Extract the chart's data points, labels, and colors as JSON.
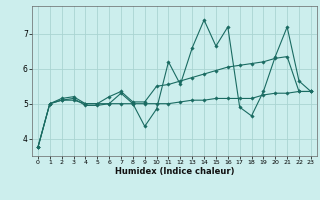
{
  "title": "",
  "xlabel": "Humidex (Indice chaleur)",
  "bg_color": "#cceeed",
  "grid_color": "#aad4d2",
  "line_color": "#1a6b62",
  "xlim": [
    -0.5,
    23.5
  ],
  "ylim": [
    3.5,
    7.8
  ],
  "yticks": [
    4,
    5,
    6,
    7
  ],
  "xticks": [
    0,
    1,
    2,
    3,
    4,
    5,
    6,
    7,
    8,
    9,
    10,
    11,
    12,
    13,
    14,
    15,
    16,
    17,
    18,
    19,
    20,
    21,
    22,
    23
  ],
  "series": [
    [
      3.75,
      5.0,
      5.1,
      5.15,
      4.95,
      4.95,
      5.0,
      5.3,
      5.0,
      4.35,
      4.85,
      6.2,
      5.55,
      6.6,
      7.4,
      6.65,
      7.2,
      4.9,
      4.65,
      5.35,
      6.35,
      7.2,
      5.65,
      5.35
    ],
    [
      3.75,
      5.0,
      5.15,
      5.2,
      5.0,
      5.0,
      5.2,
      5.35,
      5.05,
      5.05,
      5.5,
      5.55,
      5.65,
      5.75,
      5.85,
      5.95,
      6.05,
      6.1,
      6.15,
      6.2,
      6.3,
      6.35,
      5.35,
      5.35
    ],
    [
      3.75,
      5.0,
      5.1,
      5.1,
      5.0,
      5.0,
      5.0,
      5.0,
      5.0,
      5.0,
      5.0,
      5.0,
      5.05,
      5.1,
      5.1,
      5.15,
      5.15,
      5.15,
      5.15,
      5.25,
      5.3,
      5.3,
      5.35,
      5.35
    ]
  ]
}
